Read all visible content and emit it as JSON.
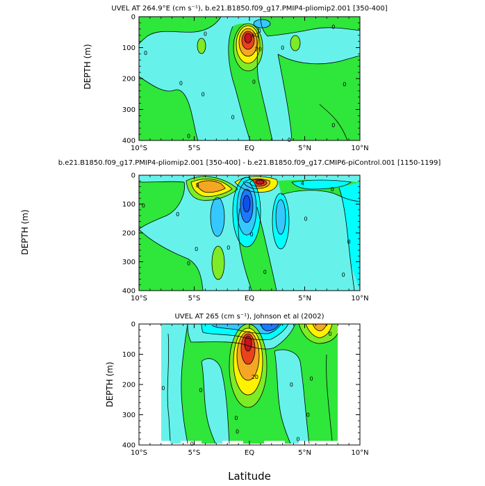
{
  "colors": {
    "cyan_light": "#66F2EA",
    "cyan": "#00FFFF",
    "green": "#2FE63A",
    "lime": "#7DEB26",
    "yellow": "#FFF200",
    "orange": "#F5A623",
    "red": "#E8431A",
    "dark_red": "#C8141E",
    "blue": "#1E78FF",
    "dark_blue": "#1050E6",
    "sky": "#35C8FF"
  },
  "x_axis": {
    "label": "Latitude",
    "ticks": [
      "10°S",
      "5°S",
      "EQ",
      "5°N",
      "10°N"
    ]
  },
  "y_axis": {
    "ticks": [
      "0",
      "100",
      "200",
      "300",
      "400"
    ]
  },
  "chart_data": [
    {
      "type": "contour",
      "title": "UVEL AT 264.9°E (cm s⁻¹), b.e21.B1850.f09_g17.PMIP4-pliomip2.001 [350-400]",
      "xlabel": "",
      "ylabel": "DEPTH (m)",
      "xlim": [
        -10,
        10
      ],
      "ylim": [
        400,
        0
      ],
      "contour_labels": [
        {
          "text": "0",
          "x": -4.0,
          "y": 55
        },
        {
          "text": "0",
          "x": -9.4,
          "y": 117
        },
        {
          "text": "0",
          "x": -6.2,
          "y": 215
        },
        {
          "text": "0",
          "x": -4.2,
          "y": 250
        },
        {
          "text": "0",
          "x": -5.5,
          "y": 385
        },
        {
          "text": "0",
          "x": -1.5,
          "y": 325
        },
        {
          "text": "0",
          "x": 3.0,
          "y": 100
        },
        {
          "text": "0",
          "x": 0.4,
          "y": 210
        },
        {
          "text": "0",
          "x": 7.6,
          "y": 33
        },
        {
          "text": "0",
          "x": 8.6,
          "y": 218
        },
        {
          "text": "0",
          "x": 7.6,
          "y": 350
        },
        {
          "text": "0",
          "x": 3.6,
          "y": 398
        },
        {
          "text": "60",
          "x": 0.5,
          "y": 60
        },
        {
          "text": "0",
          "x": 0.9,
          "y": 45
        },
        {
          "text": "20",
          "x": 0.8,
          "y": 105
        }
      ]
    },
    {
      "type": "contour",
      "title": "b.e21.B1850.f09_g17.PMIP4-pliomip2.001 [350-400] - b.e21.B1850.f09_g17.CMIP6-piControl.001 [1150-1199]",
      "xlabel": "",
      "ylabel": "DEPTH (m)",
      "xlim": [
        -10,
        10
      ],
      "ylim": [
        400,
        0
      ],
      "contour_labels": [
        {
          "text": "8",
          "x": -4.7,
          "y": 35
        },
        {
          "text": "4",
          "x": 4.8,
          "y": 28
        },
        {
          "text": "0",
          "x": -9.6,
          "y": 105
        },
        {
          "text": "0",
          "x": -6.5,
          "y": 135
        },
        {
          "text": "0",
          "x": -4.8,
          "y": 255
        },
        {
          "text": "0",
          "x": -5.5,
          "y": 305
        },
        {
          "text": "0",
          "x": 1.4,
          "y": 335
        },
        {
          "text": "0",
          "x": -1.9,
          "y": 250
        },
        {
          "text": "0",
          "x": 7.5,
          "y": 48
        },
        {
          "text": "0",
          "x": 9.0,
          "y": 230
        },
        {
          "text": "0",
          "x": 8.5,
          "y": 345
        },
        {
          "text": "0",
          "x": 5.1,
          "y": 150
        },
        {
          "text": "0",
          "x": 0.2,
          "y": 205
        }
      ]
    },
    {
      "type": "contour",
      "title": "UVEL AT 265 (cm s⁻¹), Johnson et al (2002)",
      "xlabel": "Latitude",
      "ylabel": "DEPTH (m)",
      "xlim": [
        -10,
        10
      ],
      "ylim": [
        400,
        0
      ],
      "contour_labels": [
        {
          "text": "0",
          "x": -7.8,
          "y": 212
        },
        {
          "text": "0",
          "x": -4.4,
          "y": 218
        },
        {
          "text": "0",
          "x": -1.2,
          "y": 310
        },
        {
          "text": "0",
          "x": -1.1,
          "y": 355
        },
        {
          "text": "0",
          "x": 3.8,
          "y": 200
        },
        {
          "text": "0",
          "x": 7.3,
          "y": 32
        },
        {
          "text": "0",
          "x": 5.6,
          "y": 180
        },
        {
          "text": "0",
          "x": 5.3,
          "y": 300
        },
        {
          "text": "0",
          "x": 4.4,
          "y": 380
        },
        {
          "text": "20",
          "x": 0.5,
          "y": 175
        },
        {
          "text": "0",
          "x": -5.2,
          "y": 395
        }
      ]
    }
  ]
}
